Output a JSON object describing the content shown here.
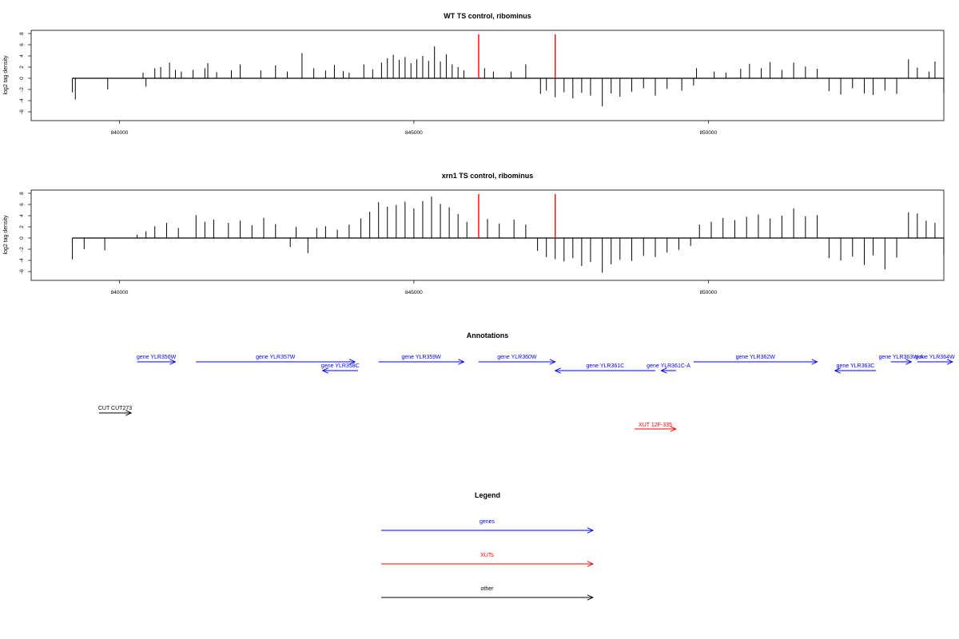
{
  "chart_data": [
    {
      "type": "bar",
      "title": "WT TS control, ribominus",
      "ylabel": "log2 tag density",
      "xlabel": "",
      "xlim": [
        838500,
        854000
      ],
      "ylim": [
        -7,
        8
      ],
      "x_ticks": [
        840000,
        845000,
        850000
      ],
      "y_ticks": [
        -6,
        -4,
        -2,
        0,
        2,
        4,
        6,
        8
      ],
      "markers": [
        {
          "x": 846100,
          "color": "#ff0000"
        },
        {
          "x": 847400,
          "color": "#ff0000"
        }
      ],
      "series": [
        {
          "values": [
            [
              839200,
              -2.5
            ],
            [
              839250,
              -3.8
            ],
            [
              839800,
              -2.0
            ],
            [
              840400,
              1.0
            ],
            [
              840450,
              -1.5
            ],
            [
              840600,
              1.8
            ],
            [
              840700,
              2.0
            ],
            [
              840850,
              2.8
            ],
            [
              840950,
              1.5
            ],
            [
              841050,
              1.2
            ],
            [
              841250,
              1.5
            ],
            [
              841450,
              1.8
            ],
            [
              841500,
              2.7
            ],
            [
              841650,
              1.1
            ],
            [
              841900,
              1.4
            ],
            [
              842050,
              2.5
            ],
            [
              842400,
              1.4
            ],
            [
              842650,
              2.3
            ],
            [
              842850,
              1.2
            ],
            [
              843100,
              4.5
            ],
            [
              843300,
              1.8
            ],
            [
              843500,
              1.4
            ],
            [
              843650,
              2.4
            ],
            [
              843800,
              1.3
            ],
            [
              843900,
              1.0
            ],
            [
              844150,
              2.5
            ],
            [
              844300,
              1.6
            ],
            [
              844450,
              2.8
            ],
            [
              844550,
              3.6
            ],
            [
              844650,
              4.2
            ],
            [
              844750,
              3.3
            ],
            [
              844850,
              3.8
            ],
            [
              844950,
              2.7
            ],
            [
              845050,
              3.4
            ],
            [
              845150,
              4.0
            ],
            [
              845250,
              3.1
            ],
            [
              845350,
              5.7
            ],
            [
              845450,
              3.0
            ],
            [
              845550,
              4.3
            ],
            [
              845650,
              2.5
            ],
            [
              845750,
              2.0
            ],
            [
              845850,
              1.4
            ],
            [
              846200,
              1.8
            ],
            [
              846350,
              1.2
            ],
            [
              846650,
              1.2
            ],
            [
              846900,
              2.5
            ],
            [
              847150,
              -2.8
            ],
            [
              847250,
              -2.2
            ],
            [
              847400,
              -3.4
            ],
            [
              847550,
              -2.5
            ],
            [
              847700,
              -3.6
            ],
            [
              847850,
              -2.6
            ],
            [
              848000,
              -3.1
            ],
            [
              848200,
              -5.0
            ],
            [
              848350,
              -2.7
            ],
            [
              848500,
              -3.3
            ],
            [
              848700,
              -2.4
            ],
            [
              848900,
              -1.8
            ],
            [
              849100,
              -3.1
            ],
            [
              849300,
              -1.9
            ],
            [
              849550,
              -2.2
            ],
            [
              849750,
              -1.3
            ],
            [
              849800,
              1.8
            ],
            [
              850100,
              1.2
            ],
            [
              850300,
              1.0
            ],
            [
              850550,
              1.7
            ],
            [
              850700,
              2.6
            ],
            [
              850900,
              1.8
            ],
            [
              851050,
              2.9
            ],
            [
              851250,
              1.5
            ],
            [
              851450,
              2.8
            ],
            [
              851650,
              2.1
            ],
            [
              851850,
              1.7
            ],
            [
              852050,
              -2.3
            ],
            [
              852250,
              -2.9
            ],
            [
              852450,
              -1.8
            ],
            [
              852650,
              -2.7
            ],
            [
              852800,
              -3.0
            ],
            [
              853000,
              -2.2
            ],
            [
              853200,
              -2.8
            ],
            [
              853400,
              3.4
            ],
            [
              853550,
              1.9
            ],
            [
              853750,
              1.2
            ],
            [
              853850,
              3.0
            ],
            [
              854000,
              -2.6
            ]
          ]
        }
      ]
    },
    {
      "type": "bar",
      "title": "xrn1 TS control, ribominus",
      "ylabel": "log2 tag density",
      "xlabel": "",
      "xlim": [
        838500,
        854000
      ],
      "ylim": [
        -7,
        8
      ],
      "x_ticks": [
        840000,
        845000,
        850000
      ],
      "y_ticks": [
        -6,
        -4,
        -2,
        0,
        2,
        4,
        6,
        8
      ],
      "markers": [
        {
          "x": 846100,
          "color": "#ff0000"
        },
        {
          "x": 847400,
          "color": "#ff0000"
        }
      ],
      "series": [
        {
          "values": [
            [
              839200,
              -3.8
            ],
            [
              839400,
              -2.0
            ],
            [
              839750,
              -2.2
            ],
            [
              840300,
              0.6
            ],
            [
              840450,
              1.2
            ],
            [
              840600,
              2.1
            ],
            [
              840800,
              2.7
            ],
            [
              841000,
              1.8
            ],
            [
              841300,
              4.1
            ],
            [
              841450,
              2.9
            ],
            [
              841600,
              3.3
            ],
            [
              841850,
              2.7
            ],
            [
              842050,
              3.1
            ],
            [
              842250,
              2.3
            ],
            [
              842450,
              3.6
            ],
            [
              842650,
              2.5
            ],
            [
              842900,
              -1.6
            ],
            [
              843000,
              2.0
            ],
            [
              843200,
              -2.7
            ],
            [
              843350,
              1.8
            ],
            [
              843500,
              2.1
            ],
            [
              843700,
              1.5
            ],
            [
              843900,
              2.4
            ],
            [
              844100,
              3.5
            ],
            [
              844250,
              4.7
            ],
            [
              844400,
              6.4
            ],
            [
              844550,
              5.6
            ],
            [
              844700,
              5.9
            ],
            [
              844850,
              6.5
            ],
            [
              845000,
              5.3
            ],
            [
              845150,
              6.6
            ],
            [
              845300,
              7.4
            ],
            [
              845450,
              6.1
            ],
            [
              845600,
              5.5
            ],
            [
              845750,
              4.3
            ],
            [
              845900,
              2.9
            ],
            [
              846250,
              3.4
            ],
            [
              846450,
              2.6
            ],
            [
              846700,
              3.3
            ],
            [
              846900,
              2.4
            ],
            [
              847100,
              -2.3
            ],
            [
              847250,
              -3.4
            ],
            [
              847400,
              -3.8
            ],
            [
              847550,
              -4.2
            ],
            [
              847700,
              -3.6
            ],
            [
              847850,
              -5.0
            ],
            [
              848000,
              -4.3
            ],
            [
              848200,
              -6.2
            ],
            [
              848350,
              -4.7
            ],
            [
              848500,
              -3.9
            ],
            [
              848700,
              -4.1
            ],
            [
              848900,
              -3.2
            ],
            [
              849100,
              -3.4
            ],
            [
              849300,
              -2.6
            ],
            [
              849500,
              -2.1
            ],
            [
              849700,
              -1.4
            ],
            [
              849850,
              2.4
            ],
            [
              850050,
              2.9
            ],
            [
              850250,
              3.6
            ],
            [
              850450,
              3.2
            ],
            [
              850650,
              3.8
            ],
            [
              850850,
              4.2
            ],
            [
              851050,
              3.5
            ],
            [
              851250,
              4.0
            ],
            [
              851450,
              5.3
            ],
            [
              851650,
              3.9
            ],
            [
              851850,
              4.1
            ],
            [
              852050,
              -3.6
            ],
            [
              852250,
              -4.0
            ],
            [
              852450,
              -3.3
            ],
            [
              852650,
              -4.8
            ],
            [
              852800,
              -3.1
            ],
            [
              853000,
              -5.6
            ],
            [
              853200,
              -3.5
            ],
            [
              853400,
              4.6
            ],
            [
              853550,
              4.4
            ],
            [
              853700,
              3.1
            ],
            [
              853850,
              2.7
            ],
            [
              854000,
              -3.0
            ]
          ]
        }
      ]
    }
  ],
  "annotations": {
    "title": "Annotations",
    "xlim": [
      838500,
      854000
    ],
    "genes": [
      {
        "label": "gene YLR356W",
        "start": 840300,
        "end": 840950,
        "dir": "+",
        "row": 0
      },
      {
        "label": "gene YLR357W",
        "start": 841300,
        "end": 844000,
        "dir": "+",
        "row": 0
      },
      {
        "label": "gene YLR358C",
        "start": 843450,
        "end": 844050,
        "dir": "-",
        "row": 1
      },
      {
        "label": "gene YLR359W",
        "start": 844400,
        "end": 845850,
        "dir": "+",
        "row": 0
      },
      {
        "label": "gene YLR360W",
        "start": 846100,
        "end": 847400,
        "dir": "+",
        "row": 0
      },
      {
        "label": "gene YLR361C",
        "start": 847400,
        "end": 849100,
        "dir": "-",
        "row": 1
      },
      {
        "label": "gene YLR361C-A",
        "start": 849200,
        "end": 849450,
        "dir": "-",
        "row": 1
      },
      {
        "label": "gene YLR362W",
        "start": 849750,
        "end": 851850,
        "dir": "+",
        "row": 0
      },
      {
        "label": "gene YLR363C",
        "start": 852150,
        "end": 852850,
        "dir": "-",
        "row": 1
      },
      {
        "label": "gene YLR363W-A",
        "start": 853100,
        "end": 853450,
        "dir": "+",
        "row": 0
      },
      {
        "label": "gene YLR364W",
        "start": 853550,
        "end": 854150,
        "dir": "+",
        "row": 0
      }
    ],
    "cuts": [
      {
        "label": "CUT CUT273",
        "start": 839650,
        "end": 840200,
        "dir": "+"
      }
    ],
    "xuts": [
      {
        "label": "XUT 12F-335",
        "start": 848750,
        "end": 849450,
        "dir": "+"
      }
    ]
  },
  "legend": {
    "title": "Legend",
    "items": [
      {
        "label": "genes",
        "color": "#0000ff"
      },
      {
        "label": "XUTs",
        "color": "#ff0000"
      },
      {
        "label": "other",
        "color": "#000000"
      }
    ]
  },
  "colors": {
    "gene": "#0000ff",
    "xut": "#ff0000",
    "other": "#000000",
    "marker": "#ff0000"
  }
}
